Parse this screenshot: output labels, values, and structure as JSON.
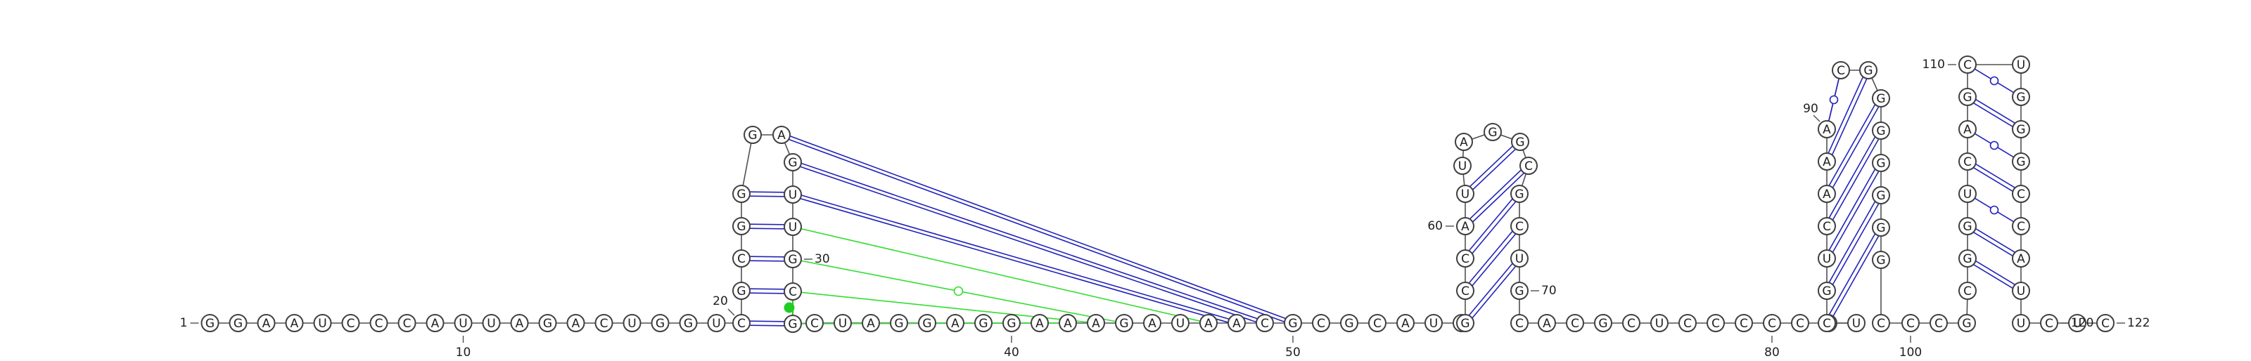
{
  "sequence": "GGAAUCCCAUUAGACUGGUCGCGGGAGUUGCGCUAGGAGGAAAGAUAACGCGCAUCGCCAUUAGGCGCUGCACGCUCCCCCGUCGUCAAACGGGGGGGCCCGCGGUCAGCUGGGCCAUUCUC",
  "position_labels": [
    {
      "text": "1",
      "pos": 1
    },
    {
      "text": "10",
      "pos": 10
    },
    {
      "text": "20",
      "pos": 20
    },
    {
      "text": "30",
      "pos": 30
    },
    {
      "text": "40",
      "pos": 40
    },
    {
      "text": "50",
      "pos": 50
    },
    {
      "text": "60",
      "pos": 60
    },
    {
      "text": "70",
      "pos": 70
    },
    {
      "text": "80",
      "pos": 80
    },
    {
      "text": "90",
      "pos": 90
    },
    {
      "text": "100",
      "pos": 100
    },
    {
      "text": "110",
      "pos": 110
    },
    {
      "text": "120",
      "pos": 120
    },
    {
      "text": "122",
      "pos": 122
    }
  ],
  "stems": [
    [
      [
        20,
        32
      ],
      [
        21,
        31
      ],
      [
        22,
        30
      ],
      [
        23,
        29
      ],
      [
        24,
        28
      ]
    ],
    [
      [
        57,
        69
      ],
      [
        58,
        68
      ],
      [
        59,
        67
      ],
      [
        60,
        66
      ],
      [
        61,
        65
      ]
    ],
    [
      [
        84,
        97
      ],
      [
        85,
        96
      ],
      [
        86,
        95
      ],
      [
        87,
        94
      ],
      [
        88,
        93
      ],
      [
        89,
        92
      ],
      [
        90,
        91
      ]
    ],
    [
      [
        104,
        118
      ],
      [
        105,
        117
      ],
      [
        106,
        116
      ],
      [
        107,
        115
      ],
      [
        108,
        114
      ],
      [
        109,
        113
      ],
      [
        110,
        112
      ]
    ]
  ],
  "wobble_pairs": [
    [
      90,
      91
    ],
    [
      106,
      116
    ],
    [
      108,
      114
    ],
    [
      110,
      112
    ]
  ],
  "pseudoknot": {
    "canonical": [
      [
        26,
        50
      ],
      [
        27,
        49
      ],
      [
        28,
        48
      ]
    ],
    "noncanonical": [
      [
        29,
        47
      ],
      [
        30,
        44
      ],
      [
        31,
        43
      ],
      [
        32,
        42
      ]
    ],
    "noncanonical_markers": [
      [
        30,
        44
      ]
    ],
    "highlight_pair": [
      31,
      32
    ],
    "noncanonical_color": "#33dd33",
    "highlight_color": "#22cc22"
  },
  "colors": {
    "canonical": "#2222bb",
    "wobble_marker": "#2222bb",
    "backbone": "#505050",
    "nucleotide_stroke": "#404040"
  }
}
